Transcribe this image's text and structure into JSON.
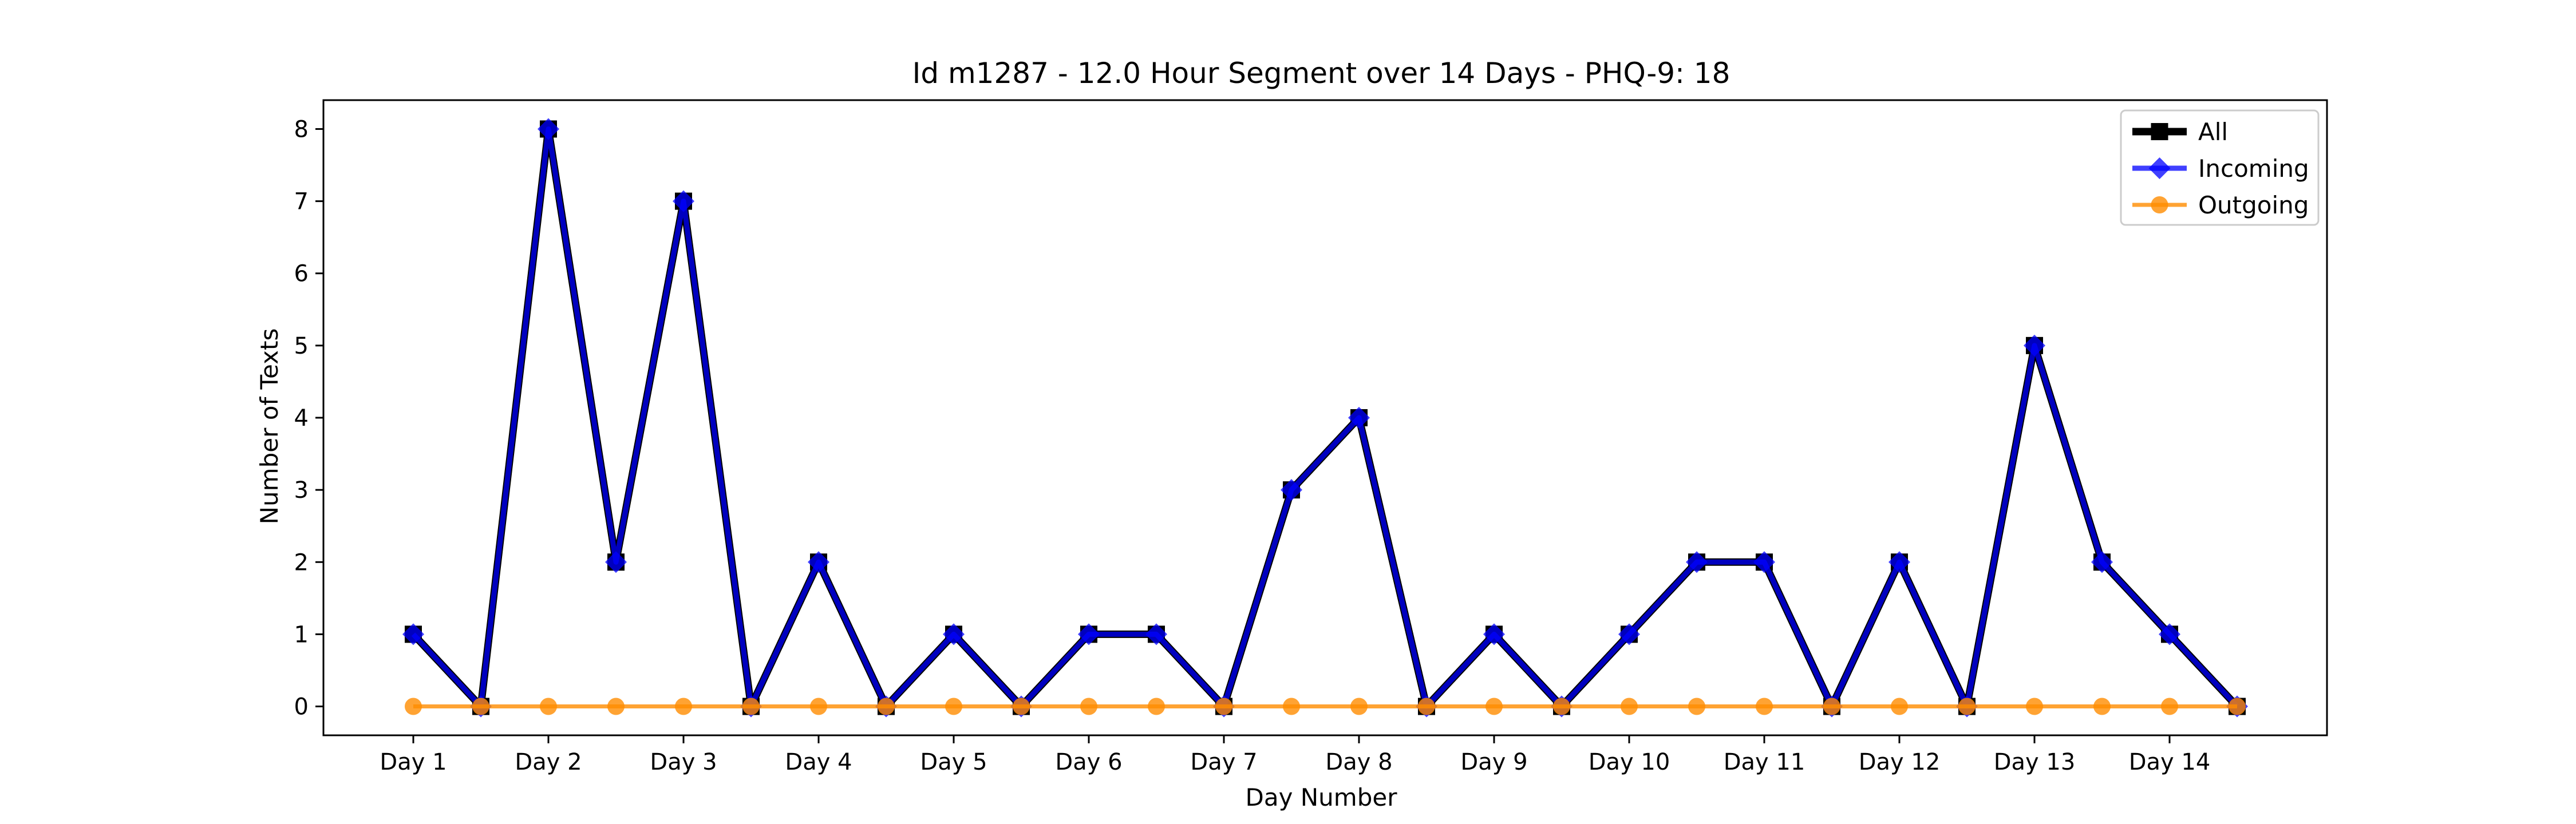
{
  "chart_data": {
    "type": "line",
    "title": "Id m1287 - 12.0 Hour Segment over 14 Days - PHQ-9: 18",
    "xlabel": "Day Number",
    "ylabel": "Number of Texts",
    "x_tick_labels": [
      "Day 1",
      "Day 2",
      "Day 3",
      "Day 4",
      "Day 5",
      "Day 6",
      "Day 7",
      "Day 8",
      "Day 9",
      "Day 10",
      "Day 11",
      "Day 12",
      "Day 13",
      "Day 14"
    ],
    "y_ticks": [
      0,
      1,
      2,
      3,
      4,
      5,
      6,
      7,
      8
    ],
    "ylim": [
      -0.4,
      8.4
    ],
    "x_points_per_day": 2,
    "grid": false,
    "legend_position": "top-right",
    "series": [
      {
        "name": "All",
        "color": "#000000",
        "marker": "square",
        "values": [
          1,
          0,
          8,
          2,
          7,
          0,
          2,
          0,
          1,
          0,
          1,
          1,
          0,
          3,
          4,
          0,
          1,
          0,
          1,
          2,
          2,
          0,
          2,
          0,
          5,
          2,
          1,
          0
        ]
      },
      {
        "name": "Incoming",
        "color": "#0000ff",
        "marker": "diamond",
        "values": [
          1,
          0,
          8,
          2,
          7,
          0,
          2,
          0,
          1,
          0,
          1,
          1,
          0,
          3,
          4,
          0,
          1,
          0,
          1,
          2,
          2,
          0,
          2,
          0,
          5,
          2,
          1,
          0
        ]
      },
      {
        "name": "Outgoing",
        "color": "#ff8c00",
        "marker": "circle",
        "values": [
          0,
          0,
          0,
          0,
          0,
          0,
          0,
          0,
          0,
          0,
          0,
          0,
          0,
          0,
          0,
          0,
          0,
          0,
          0,
          0,
          0,
          0,
          0,
          0,
          0,
          0,
          0,
          0
        ]
      }
    ]
  }
}
